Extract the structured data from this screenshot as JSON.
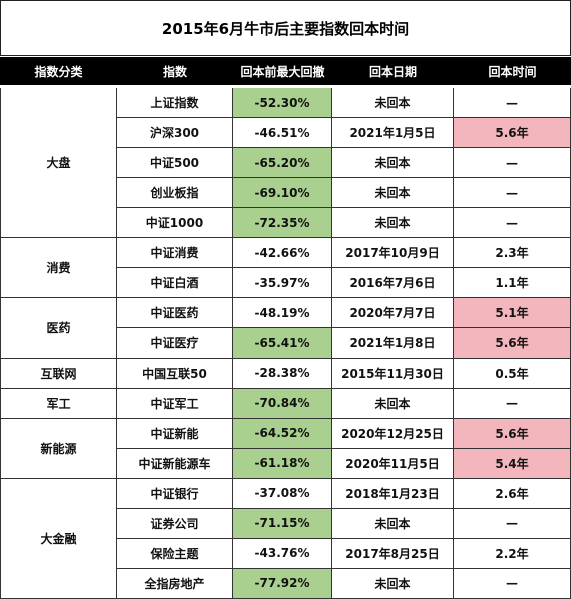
{
  "title": "2015年6月牛市后主要指数回本时间",
  "headers": [
    "指数分类",
    "指数",
    "回本前最大回撤",
    "回本日期",
    "回本时间"
  ],
  "colors": {
    "header_bg": "#000000",
    "green": "#a9d08e",
    "pink": "#f4b6bd"
  },
  "categories": [
    {
      "name": "大盘",
      "rows": 5
    },
    {
      "name": "消费",
      "rows": 2
    },
    {
      "name": "医药",
      "rows": 2
    },
    {
      "name": "互联网",
      "rows": 1
    },
    {
      "name": "军工",
      "rows": 1
    },
    {
      "name": "新能源",
      "rows": 2
    },
    {
      "name": "大金融",
      "rows": 4
    }
  ],
  "rows": [
    {
      "index": "上证指数",
      "drawdown": "-52.30%",
      "date": "未回本",
      "time": "—",
      "dd_hl": "green",
      "time_hl": ""
    },
    {
      "index": "沪深300",
      "drawdown": "-46.51%",
      "date": "2021年1月5日",
      "time": "5.6年",
      "dd_hl": "",
      "time_hl": "pink"
    },
    {
      "index": "中证500",
      "drawdown": "-65.20%",
      "date": "未回本",
      "time": "—",
      "dd_hl": "green",
      "time_hl": ""
    },
    {
      "index": "创业板指",
      "drawdown": "-69.10%",
      "date": "未回本",
      "time": "—",
      "dd_hl": "green",
      "time_hl": ""
    },
    {
      "index": "中证1000",
      "drawdown": "-72.35%",
      "date": "未回本",
      "time": "—",
      "dd_hl": "green",
      "time_hl": ""
    },
    {
      "index": "中证消费",
      "drawdown": "-42.66%",
      "date": "2017年10月9日",
      "time": "2.3年",
      "dd_hl": "",
      "time_hl": ""
    },
    {
      "index": "中证白酒",
      "drawdown": "-35.97%",
      "date": "2016年7月6日",
      "time": "1.1年",
      "dd_hl": "",
      "time_hl": ""
    },
    {
      "index": "中证医药",
      "drawdown": "-48.19%",
      "date": "2020年7月7日",
      "time": "5.1年",
      "dd_hl": "",
      "time_hl": "pink"
    },
    {
      "index": "中证医疗",
      "drawdown": "-65.41%",
      "date": "2021年1月8日",
      "time": "5.6年",
      "dd_hl": "green",
      "time_hl": "pink"
    },
    {
      "index": "中国互联50",
      "drawdown": "-28.38%",
      "date": "2015年11月30日",
      "time": "0.5年",
      "dd_hl": "",
      "time_hl": ""
    },
    {
      "index": "中证军工",
      "drawdown": "-70.84%",
      "date": "未回本",
      "time": "—",
      "dd_hl": "green",
      "time_hl": ""
    },
    {
      "index": "中证新能",
      "drawdown": "-64.52%",
      "date": "2020年12月25日",
      "time": "5.6年",
      "dd_hl": "green",
      "time_hl": "pink"
    },
    {
      "index": "中证新能源车",
      "drawdown": "-61.18%",
      "date": "2020年11月5日",
      "time": "5.4年",
      "dd_hl": "green",
      "time_hl": "pink"
    },
    {
      "index": "中证银行",
      "drawdown": "-37.08%",
      "date": "2018年1月23日",
      "time": "2.6年",
      "dd_hl": "",
      "time_hl": ""
    },
    {
      "index": "证券公司",
      "drawdown": "-71.15%",
      "date": "未回本",
      "time": "—",
      "dd_hl": "green",
      "time_hl": ""
    },
    {
      "index": "保险主题",
      "drawdown": "-43.76%",
      "date": "2017年8月25日",
      "time": "2.2年",
      "dd_hl": "",
      "time_hl": ""
    },
    {
      "index": "全指房地产",
      "drawdown": "-77.92%",
      "date": "未回本",
      "time": "—",
      "dd_hl": "green",
      "time_hl": ""
    }
  ]
}
